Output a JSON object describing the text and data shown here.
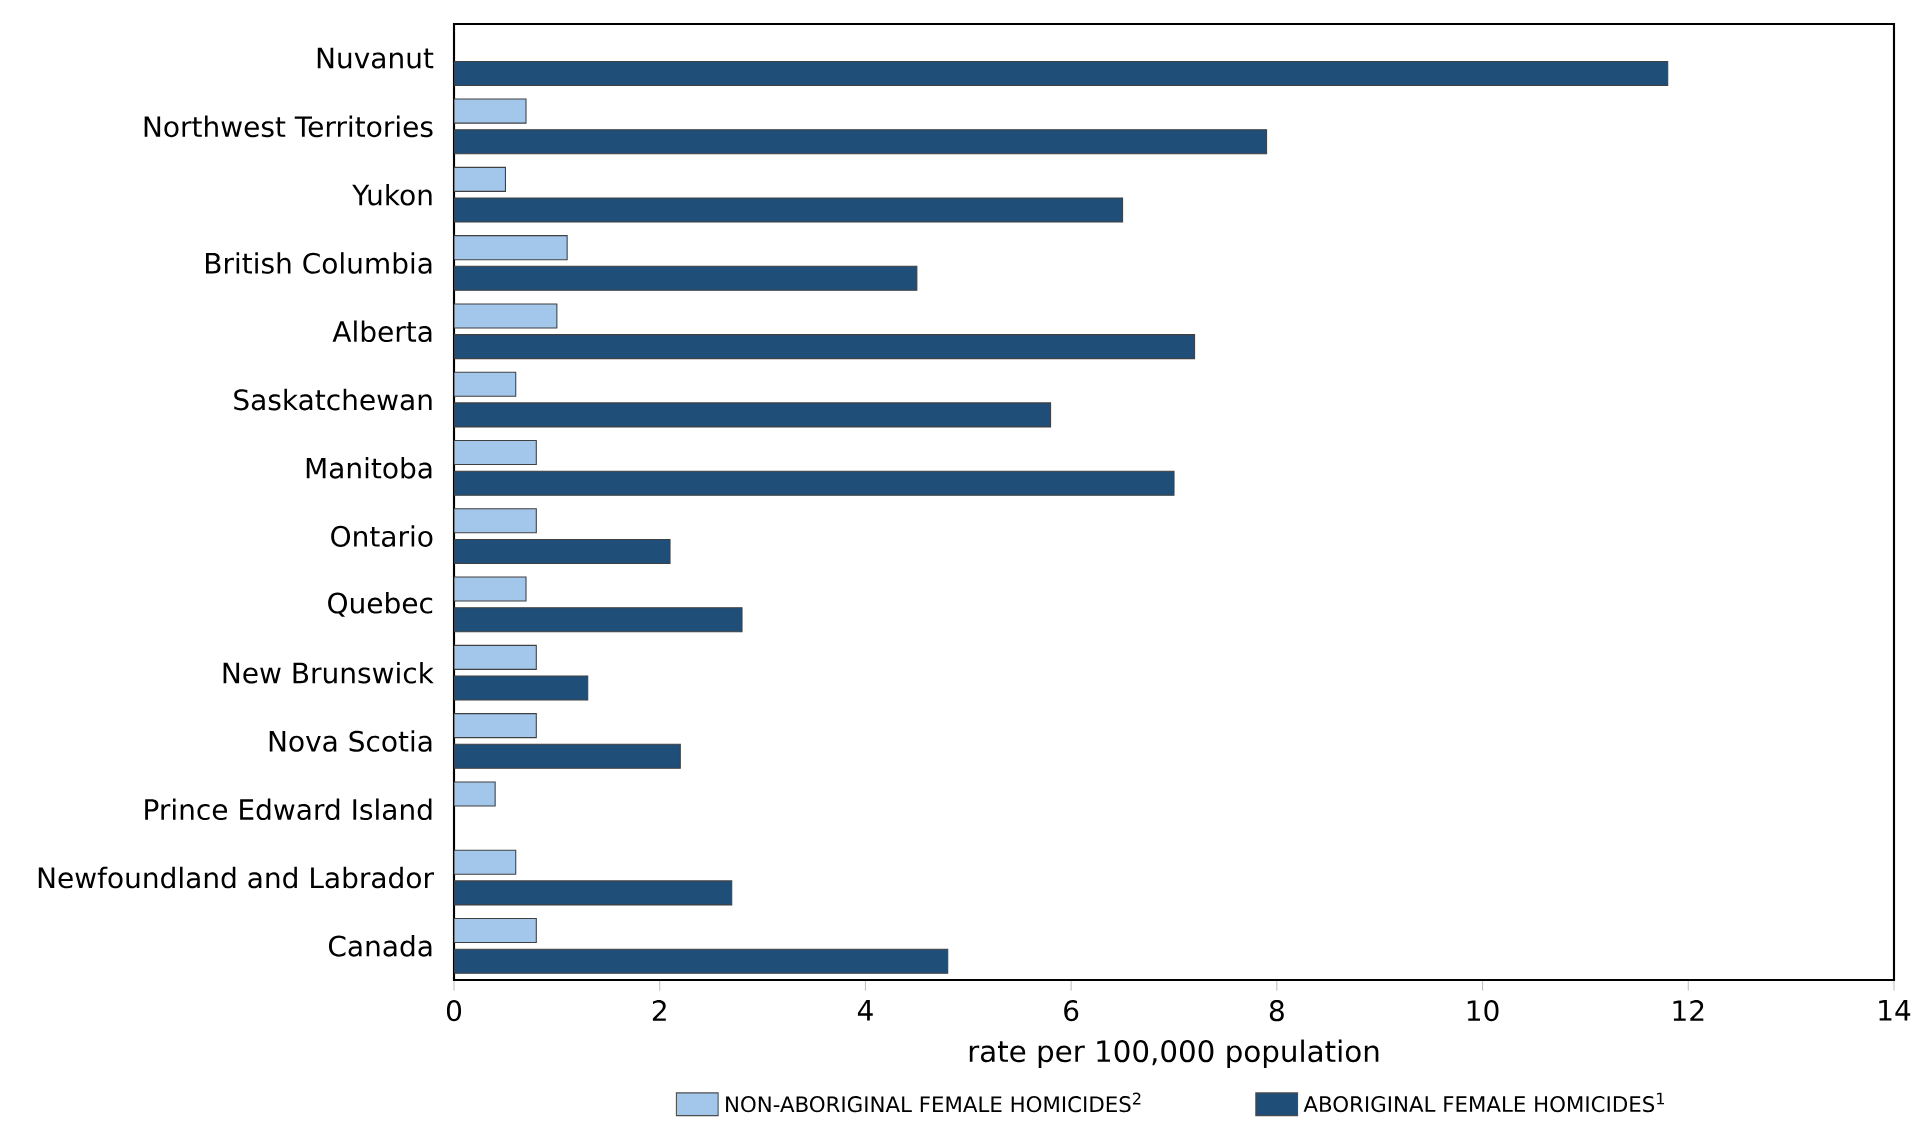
{
  "chart_data": {
    "type": "bar",
    "orientation": "horizontal",
    "xlabel": "rate per 100,000 population",
    "categories": [
      "Nuvanut",
      "Northwest Territories",
      "Yukon",
      "British Columbia",
      "Alberta",
      "Saskatchewan",
      "Manitoba",
      "Ontario",
      "Quebec",
      "New Brunswick",
      "Nova Scotia",
      "Prince Edward Island",
      "Newfoundland and Labrador",
      "Canada"
    ],
    "series": [
      {
        "name": "NON-ABORIGINAL FEMALE HOMICIDES$^{2}$",
        "color": "#a3c6eb",
        "values": [
          null,
          0.7,
          0.5,
          1.1,
          1.0,
          0.6,
          0.8,
          0.8,
          0.7,
          0.8,
          0.8,
          0.4,
          0.6,
          0.8
        ]
      },
      {
        "name": "ABORIGINAL FEMALE HOMICIDES$^{1}$",
        "color": "#1f4e79",
        "values": [
          11.8,
          7.9,
          6.5,
          4.5,
          7.2,
          5.8,
          7.0,
          2.1,
          2.8,
          1.3,
          2.2,
          null,
          2.7,
          4.8
        ]
      }
    ],
    "xlim": [
      0,
      14
    ],
    "xticks": [
      0,
      2,
      4,
      6,
      8,
      10,
      12,
      14
    ],
    "legend": "bottom"
  }
}
